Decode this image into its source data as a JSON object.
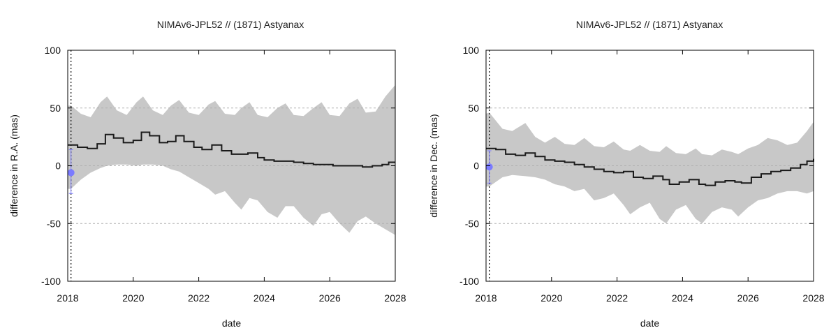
{
  "colors": {
    "band": "#c8c8c8",
    "line": "#1a1a1a",
    "observation": "#7b7bff",
    "grid": "#b0b0b0",
    "axis": "#000000"
  },
  "chart_data": [
    {
      "type": "line",
      "title": "NIMAv6-JPL52 // (1871) Astyanax",
      "xlabel": "date",
      "ylabel": "difference in R.A. (mas)",
      "xlim": [
        2018,
        2028
      ],
      "ylim": [
        -100,
        100
      ],
      "xticks": [
        "2018",
        "2020",
        "2022",
        "2024",
        "2026",
        "2028"
      ],
      "yticks": [
        "-100",
        "-50",
        "0",
        "50",
        "100"
      ],
      "grid": "horizontal dashed at y ticks",
      "marker_line_x": 2018.1,
      "series": [
        {
          "kind": "mean",
          "x": [
            2018.0,
            2018.3,
            2018.6,
            2018.9,
            2019.15,
            2019.4,
            2019.7,
            2020.0,
            2020.25,
            2020.5,
            2020.8,
            2021.05,
            2021.3,
            2021.55,
            2021.85,
            2022.1,
            2022.4,
            2022.7,
            2023.0,
            2023.2,
            2023.5,
            2023.8,
            2024.0,
            2024.3,
            2024.6,
            2024.9,
            2025.2,
            2025.5,
            2025.8,
            2026.1,
            2026.4,
            2026.7,
            2027.0,
            2027.3,
            2027.6,
            2027.8,
            2028.0
          ],
          "y": [
            18,
            16,
            15,
            19,
            27,
            24,
            20,
            22,
            29,
            26,
            20,
            21,
            26,
            21,
            16,
            14,
            18,
            13,
            10,
            10,
            11,
            7,
            5,
            4,
            4,
            3,
            2,
            1,
            1,
            0,
            0,
            0,
            -1,
            0,
            1,
            3,
            3
          ]
        },
        {
          "kind": "uncertainty_band",
          "x": [
            2018.0,
            2018.1,
            2018.4,
            2018.7,
            2019.0,
            2019.2,
            2019.5,
            2019.8,
            2020.1,
            2020.3,
            2020.6,
            2020.9,
            2021.15,
            2021.4,
            2021.7,
            2022.0,
            2022.3,
            2022.5,
            2022.8,
            2023.1,
            2023.3,
            2023.55,
            2023.8,
            2024.1,
            2024.4,
            2024.65,
            2024.9,
            2025.2,
            2025.5,
            2025.75,
            2026.0,
            2026.3,
            2026.6,
            2026.85,
            2027.1,
            2027.4,
            2027.7,
            2028.0
          ],
          "upper": [
            52,
            52,
            45,
            42,
            55,
            60,
            48,
            44,
            55,
            60,
            48,
            44,
            52,
            57,
            46,
            44,
            53,
            56,
            45,
            44,
            50,
            55,
            44,
            42,
            50,
            54,
            44,
            43,
            50,
            55,
            44,
            43,
            54,
            58,
            46,
            47,
            60,
            70
          ],
          "lower": [
            -20,
            -20,
            -12,
            -6,
            -2,
            0,
            1,
            1,
            0,
            1,
            1,
            0,
            -3,
            -5,
            -10,
            -15,
            -20,
            -25,
            -22,
            -32,
            -38,
            -28,
            -30,
            -40,
            -45,
            -35,
            -35,
            -45,
            -52,
            -42,
            -40,
            -50,
            -58,
            -48,
            -44,
            -50,
            -55,
            -60
          ]
        },
        {
          "kind": "observation",
          "x": [
            2018.1
          ],
          "y": [
            -6
          ],
          "err_low": [
            -24
          ],
          "err_high": [
            14
          ]
        }
      ]
    },
    {
      "type": "line",
      "title": "NIMAv6-JPL52 // (1871) Astyanax",
      "xlabel": "date",
      "ylabel": "difference in Dec. (mas)",
      "xlim": [
        2018,
        2028
      ],
      "ylim": [
        -100,
        100
      ],
      "xticks": [
        "2018",
        "2020",
        "2022",
        "2024",
        "2026",
        "2028"
      ],
      "yticks": [
        "-100",
        "-50",
        "0",
        "50",
        "100"
      ],
      "grid": "horizontal dashed at y ticks",
      "marker_line_x": 2018.1,
      "series": [
        {
          "kind": "mean",
          "x": [
            2018.0,
            2018.3,
            2018.6,
            2018.9,
            2019.2,
            2019.5,
            2019.8,
            2020.1,
            2020.4,
            2020.7,
            2021.0,
            2021.3,
            2021.6,
            2021.9,
            2022.2,
            2022.5,
            2022.8,
            2023.1,
            2023.4,
            2023.6,
            2023.9,
            2024.2,
            2024.5,
            2024.7,
            2025.0,
            2025.3,
            2025.6,
            2025.8,
            2026.1,
            2026.4,
            2026.7,
            2027.0,
            2027.3,
            2027.6,
            2027.8,
            2028.0
          ],
          "y": [
            15,
            14,
            10,
            9,
            11,
            8,
            5,
            4,
            3,
            1,
            -1,
            -3,
            -5,
            -6,
            -5,
            -10,
            -11,
            -9,
            -12,
            -16,
            -14,
            -12,
            -16,
            -17,
            -14,
            -13,
            -14,
            -15,
            -10,
            -7,
            -5,
            -4,
            -2,
            1,
            4,
            6
          ]
        },
        {
          "kind": "uncertainty_band",
          "x": [
            2018.0,
            2018.1,
            2018.5,
            2018.8,
            2019.2,
            2019.5,
            2019.8,
            2020.1,
            2020.4,
            2020.7,
            2021.0,
            2021.3,
            2021.6,
            2021.9,
            2022.2,
            2022.4,
            2022.7,
            2023.0,
            2023.3,
            2023.5,
            2023.8,
            2024.1,
            2024.4,
            2024.6,
            2024.9,
            2025.2,
            2025.5,
            2025.7,
            2026.0,
            2026.3,
            2026.6,
            2026.9,
            2027.2,
            2027.5,
            2027.8,
            2028.0
          ],
          "upper": [
            45,
            46,
            32,
            30,
            37,
            25,
            20,
            25,
            19,
            18,
            24,
            17,
            16,
            21,
            14,
            13,
            18,
            13,
            12,
            17,
            11,
            10,
            15,
            10,
            9,
            14,
            12,
            10,
            15,
            18,
            24,
            22,
            18,
            20,
            30,
            38
          ],
          "lower": [
            -18,
            -18,
            -10,
            -8,
            -9,
            -10,
            -12,
            -16,
            -18,
            -22,
            -20,
            -30,
            -28,
            -24,
            -34,
            -42,
            -36,
            -32,
            -46,
            -50,
            -38,
            -34,
            -46,
            -50,
            -40,
            -36,
            -38,
            -44,
            -36,
            -30,
            -28,
            -24,
            -22,
            -22,
            -24,
            -22
          ]
        },
        {
          "kind": "observation",
          "x": [
            2018.1
          ],
          "y": [
            -1
          ],
          "err_low": [
            -15
          ],
          "err_high": [
            13
          ]
        }
      ]
    }
  ]
}
